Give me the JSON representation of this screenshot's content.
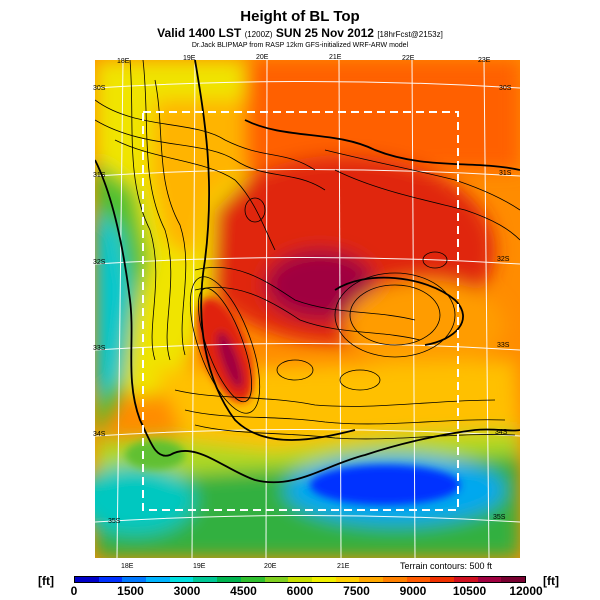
{
  "header": {
    "title": "Height of BL Top",
    "subtitle_main": "Valid 1400 LST",
    "subtitle_small_1": "(1200Z)",
    "subtitle_main_2": "SUN 25 Nov 2012",
    "subtitle_small_2": "[18hrFcst@2153z]",
    "credit": "Dr.Jack BLIPMAP from RASP 12km GFS-initialized WRF-ARW model"
  },
  "map": {
    "top_longitudes": [
      "18E",
      "19E",
      "20E",
      "21E",
      "22E",
      "23E"
    ],
    "bottom_longitudes": [
      "18E",
      "19E",
      "20E",
      "21E"
    ],
    "left_latitudes": [
      "30S",
      "31S",
      "32S",
      "33S",
      "34S",
      "35S"
    ],
    "right_latitudes": [
      "30S",
      "31S",
      "32S",
      "33S",
      "34S",
      "35S"
    ],
    "terrain_note": "Terrain contours: 500 ft"
  },
  "legend": {
    "unit_left": "[ft]",
    "unit_right": "[ft]",
    "ticks": [
      "0",
      "1500",
      "3000",
      "4500",
      "6000",
      "7500",
      "9000",
      "10500",
      "12000"
    ],
    "colors": [
      "#0000c8",
      "#0030ff",
      "#0078ff",
      "#00b4ff",
      "#00e0e0",
      "#00c896",
      "#00b450",
      "#30c030",
      "#80d020",
      "#c8e000",
      "#f0f000",
      "#ffd000",
      "#ffa800",
      "#ff8000",
      "#ff5a00",
      "#f03000",
      "#d01020",
      "#a00040",
      "#780030"
    ]
  }
}
